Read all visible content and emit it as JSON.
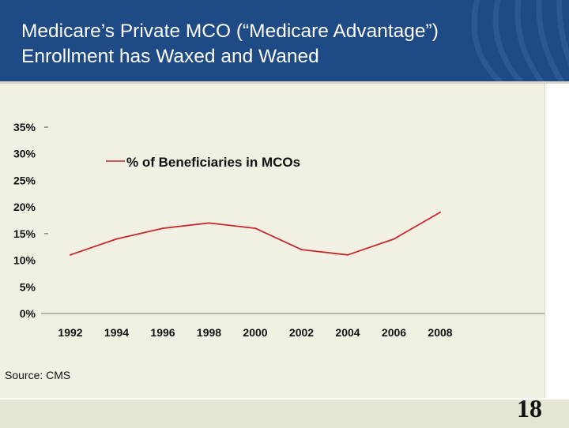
{
  "slide": {
    "title": "Medicare’s Private MCO (“Medicare Advantage”)\nEnrollment has Waxed and Waned",
    "source": "Source: CMS",
    "page_number": "18"
  },
  "colors": {
    "header_bg": "#1e4a86",
    "series_line": "#c8282d"
  },
  "chart_data": {
    "type": "line",
    "title": "",
    "xlabel": "",
    "ylabel": "",
    "x": [
      "1992",
      "1994",
      "1996",
      "1998",
      "2000",
      "2002",
      "2004",
      "2006",
      "2008"
    ],
    "y_ticks": [
      "0%",
      "5%",
      "10%",
      "15%",
      "20%",
      "25%",
      "30%",
      "35%"
    ],
    "ylim": [
      0,
      35
    ],
    "series": [
      {
        "name": "% of Beneficiaries in MCOs",
        "values": [
          11,
          14,
          16,
          17,
          16,
          12,
          11,
          14,
          19
        ]
      }
    ],
    "legend": "top-left",
    "grid": false
  }
}
